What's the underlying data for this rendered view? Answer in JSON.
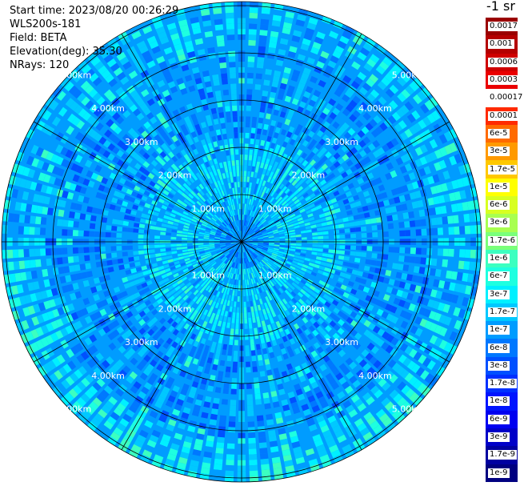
{
  "info": {
    "start_time": "Start time: 2023/08/20 00:26:29",
    "instrument": "WLS200s-181",
    "field": "Field: BETA",
    "elevation": "Elevation(deg): 35.30",
    "nrays": "NRays: 120"
  },
  "chart_data": {
    "type": "heatmap",
    "projection": "polar (PPI scan)",
    "range_rings_km": [
      1.0,
      2.0,
      3.0,
      4.0,
      5.0
    ],
    "range_ring_labels": [
      "1.00km",
      "2.00km",
      "3.00km",
      "4.00km",
      "5.00km"
    ],
    "azimuth_spokes_deg": [
      0,
      30,
      60,
      90,
      120,
      150,
      180,
      210,
      240,
      270,
      300,
      330
    ],
    "nrays": 120,
    "colorbar": {
      "unit": "-1 sr",
      "levels": [
        {
          "label": "0.0017",
          "color": "#9a0000"
        },
        {
          "label": "0.001",
          "color": "#b40000"
        },
        {
          "label": "0.0006",
          "color": "#cf0000"
        },
        {
          "label": "0.0003",
          "color": "#ea0000"
        },
        {
          "label": "0.00017",
          "color": "#ffffff"
        },
        {
          "label": "0.0001",
          "color": "#ff2a00"
        },
        {
          "label": "6e-5",
          "color": "#ff6a00"
        },
        {
          "label": "3e-5",
          "color": "#ff9a00"
        },
        {
          "label": "1.7e-5",
          "color": "#ffc800"
        },
        {
          "label": "1e-5",
          "color": "#ffff00"
        },
        {
          "label": "6e-6",
          "color": "#d8ff20"
        },
        {
          "label": "3e-6",
          "color": "#a8ff50"
        },
        {
          "label": "1.7e-6",
          "color": "#7aff7a"
        },
        {
          "label": "1e-6",
          "color": "#3cffc0"
        },
        {
          "label": "6e-7",
          "color": "#1effe0"
        },
        {
          "label": "3e-7",
          "color": "#00f0ff"
        },
        {
          "label": "1.7e-7",
          "color": "#00c8ff"
        },
        {
          "label": "1e-7",
          "color": "#009cff"
        },
        {
          "label": "6e-8",
          "color": "#0078ff"
        },
        {
          "label": "3e-8",
          "color": "#0050ff"
        },
        {
          "label": "1.7e-8",
          "color": "#0030ff"
        },
        {
          "label": "1e-8",
          "color": "#0014ff"
        },
        {
          "label": "6e-9",
          "color": "#0000f0"
        },
        {
          "label": "3e-9",
          "color": "#0000c8"
        },
        {
          "label": "1.7e-9",
          "color": "#0000a0"
        },
        {
          "label": "1e-9",
          "color": "#000080"
        }
      ]
    }
  }
}
